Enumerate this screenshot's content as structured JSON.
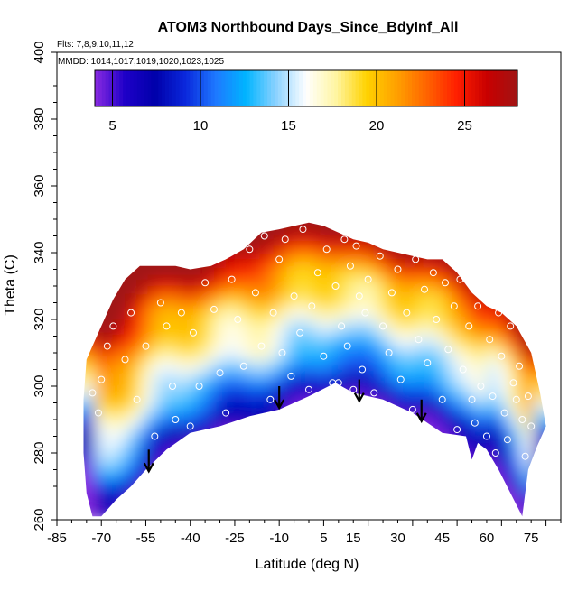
{
  "chart_data": {
    "type": "heatmap",
    "title": "ATOM3 Northbound Days_Since_BdyInf_All",
    "flights_note": "Flts: 7,8,9,10,11,12",
    "dates_note": "MMDD: 1014,1017,1019,1020,1023,1025",
    "xlabel": "Latitude (deg N)",
    "ylabel": "Theta (C)",
    "xlim": [
      -85,
      85
    ],
    "ylim": [
      260,
      400
    ],
    "x_ticks": [
      "-85",
      "-70",
      "-55",
      "-40",
      "-25",
      "-10",
      "5",
      "15",
      "30",
      "45",
      "60",
      "75"
    ],
    "y_ticks": [
      "260",
      "280",
      "300",
      "320",
      "340",
      "360",
      "380",
      "400"
    ],
    "colorbar": {
      "range": [
        4,
        28
      ],
      "ticks": [
        "5",
        "10",
        "15",
        "20",
        "25"
      ],
      "colors": [
        "#8a2be2",
        "#1e00c8",
        "#0000aa",
        "#0a28dc",
        "#1e78ff",
        "#00b4ff",
        "#8cd2ff",
        "#ffffff",
        "#fff5a0",
        "#ffd200",
        "#ffa000",
        "#ff6400",
        "#ff1e00",
        "#c80000",
        "#a01414"
      ]
    },
    "domain_top": [
      [
        -75,
        308
      ],
      [
        -70,
        318
      ],
      [
        -66,
        326
      ],
      [
        -62,
        332
      ],
      [
        -57,
        336
      ],
      [
        -52,
        336
      ],
      [
        -45,
        336
      ],
      [
        -40,
        335
      ],
      [
        -33,
        336
      ],
      [
        -28,
        338
      ],
      [
        -22,
        341
      ],
      [
        -16,
        346
      ],
      [
        -10,
        347
      ],
      [
        -5,
        348
      ],
      [
        0,
        349
      ],
      [
        5,
        348
      ],
      [
        10,
        346
      ],
      [
        15,
        344
      ],
      [
        20,
        343
      ],
      [
        25,
        341
      ],
      [
        30,
        340
      ],
      [
        35,
        339
      ],
      [
        40,
        338
      ],
      [
        45,
        338
      ],
      [
        50,
        334
      ],
      [
        55,
        328
      ],
      [
        60,
        324
      ],
      [
        65,
        322
      ],
      [
        70,
        318
      ],
      [
        75,
        310
      ],
      [
        78,
        298
      ],
      [
        80,
        288
      ]
    ],
    "domain_bottom": [
      [
        80,
        288
      ],
      [
        77,
        282
      ],
      [
        74,
        275
      ],
      [
        72,
        261
      ],
      [
        68,
        268
      ],
      [
        64,
        275
      ],
      [
        60,
        281
      ],
      [
        57,
        283
      ],
      [
        55,
        278
      ],
      [
        53,
        285
      ],
      [
        45,
        286
      ],
      [
        35,
        292
      ],
      [
        25,
        296
      ],
      [
        15,
        298
      ],
      [
        9,
        301
      ],
      [
        0,
        297
      ],
      [
        -10,
        293
      ],
      [
        -20,
        291
      ],
      [
        -30,
        288
      ],
      [
        -40,
        286
      ],
      [
        -48,
        281
      ],
      [
        -55,
        275
      ],
      [
        -60,
        270
      ],
      [
        -65,
        266
      ],
      [
        -70,
        261
      ],
      [
        -73,
        261
      ],
      [
        -75,
        268
      ],
      [
        -76,
        280
      ],
      [
        -76,
        296
      ]
    ],
    "arrows": [
      {
        "lat": -54,
        "theta": 281
      },
      {
        "lat": -10,
        "theta": 300
      },
      {
        "lat": 17,
        "theta": 302
      },
      {
        "lat": 38,
        "theta": 296
      }
    ],
    "sample_points": [
      [
        -73,
        298
      ],
      [
        -71,
        292
      ],
      [
        -70,
        302
      ],
      [
        -68,
        312
      ],
      [
        -66,
        318
      ],
      [
        -62,
        308
      ],
      [
        -60,
        322
      ],
      [
        -58,
        296
      ],
      [
        -55,
        312
      ],
      [
        -52,
        285
      ],
      [
        -50,
        325
      ],
      [
        -48,
        318
      ],
      [
        -46,
        300
      ],
      [
        -45,
        290
      ],
      [
        -43,
        322
      ],
      [
        -40,
        288
      ],
      [
        -39,
        316
      ],
      [
        -37,
        300
      ],
      [
        -35,
        331
      ],
      [
        -32,
        323
      ],
      [
        -30,
        304
      ],
      [
        -28,
        292
      ],
      [
        -26,
        332
      ],
      [
        -24,
        320
      ],
      [
        -22,
        306
      ],
      [
        -20,
        341
      ],
      [
        -18,
        328
      ],
      [
        -16,
        312
      ],
      [
        -15,
        345
      ],
      [
        -13,
        296
      ],
      [
        -12,
        322
      ],
      [
        -10,
        338
      ],
      [
        -9,
        310
      ],
      [
        -8,
        344
      ],
      [
        -6,
        303
      ],
      [
        -5,
        327
      ],
      [
        -3,
        316
      ],
      [
        -2,
        347
      ],
      [
        0,
        299
      ],
      [
        1,
        324
      ],
      [
        3,
        334
      ],
      [
        5,
        309
      ],
      [
        6,
        341
      ],
      [
        8,
        301
      ],
      [
        9,
        330
      ],
      [
        10,
        301
      ],
      [
        11,
        318
      ],
      [
        12,
        344
      ],
      [
        13,
        312
      ],
      [
        14,
        336
      ],
      [
        15,
        299
      ],
      [
        16,
        342
      ],
      [
        17,
        327
      ],
      [
        18,
        305
      ],
      [
        19,
        322
      ],
      [
        20,
        332
      ],
      [
        22,
        298
      ],
      [
        24,
        339
      ],
      [
        25,
        318
      ],
      [
        27,
        310
      ],
      [
        28,
        328
      ],
      [
        30,
        335
      ],
      [
        31,
        302
      ],
      [
        33,
        322
      ],
      [
        35,
        293
      ],
      [
        36,
        338
      ],
      [
        37,
        314
      ],
      [
        39,
        329
      ],
      [
        40,
        307
      ],
      [
        42,
        334
      ],
      [
        43,
        320
      ],
      [
        45,
        296
      ],
      [
        46,
        331
      ],
      [
        47,
        311
      ],
      [
        49,
        324
      ],
      [
        50,
        287
      ],
      [
        51,
        332
      ],
      [
        52,
        305
      ],
      [
        54,
        318
      ],
      [
        55,
        296
      ],
      [
        56,
        289
      ],
      [
        57,
        324
      ],
      [
        58,
        300
      ],
      [
        60,
        285
      ],
      [
        61,
        314
      ],
      [
        62,
        297
      ],
      [
        63,
        280
      ],
      [
        64,
        322
      ],
      [
        65,
        309
      ],
      [
        66,
        292
      ],
      [
        67,
        284
      ],
      [
        68,
        318
      ],
      [
        69,
        301
      ],
      [
        70,
        296
      ],
      [
        71,
        306
      ],
      [
        72,
        290
      ],
      [
        73,
        279
      ],
      [
        74,
        297
      ],
      [
        75,
        288
      ]
    ]
  }
}
